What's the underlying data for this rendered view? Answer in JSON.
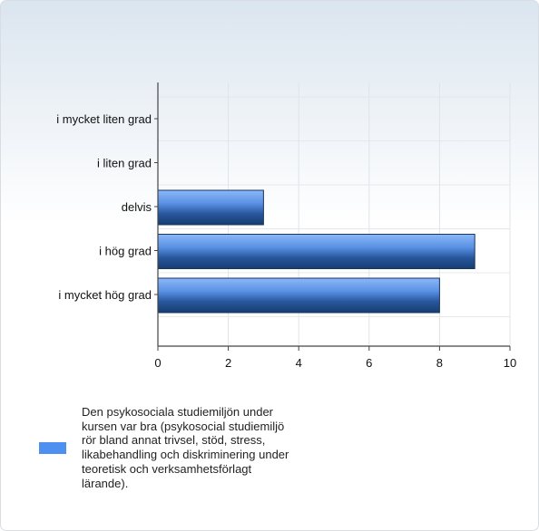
{
  "chart_data": {
    "type": "bar",
    "orientation": "horizontal",
    "categories": [
      "i mycket liten grad",
      "i liten grad",
      "delvis",
      "i hög grad",
      "i mycket hög grad"
    ],
    "series": [
      {
        "name": "Den psykosociala studiemiljön under kursen var bra (psykosocial studiemiljö rör bland annat trivsel, stöd, stress, likabehandling och diskriminering under teoretisk och verksamhetsförlagt lärande).",
        "values": [
          0,
          0,
          3,
          9,
          8
        ],
        "color": "#4e90f0"
      }
    ],
    "x_ticks": [
      "0",
      "2",
      "4",
      "6",
      "8",
      "10"
    ],
    "xlim": [
      0,
      10
    ],
    "grid": true,
    "legend_position": "bottom-left"
  }
}
